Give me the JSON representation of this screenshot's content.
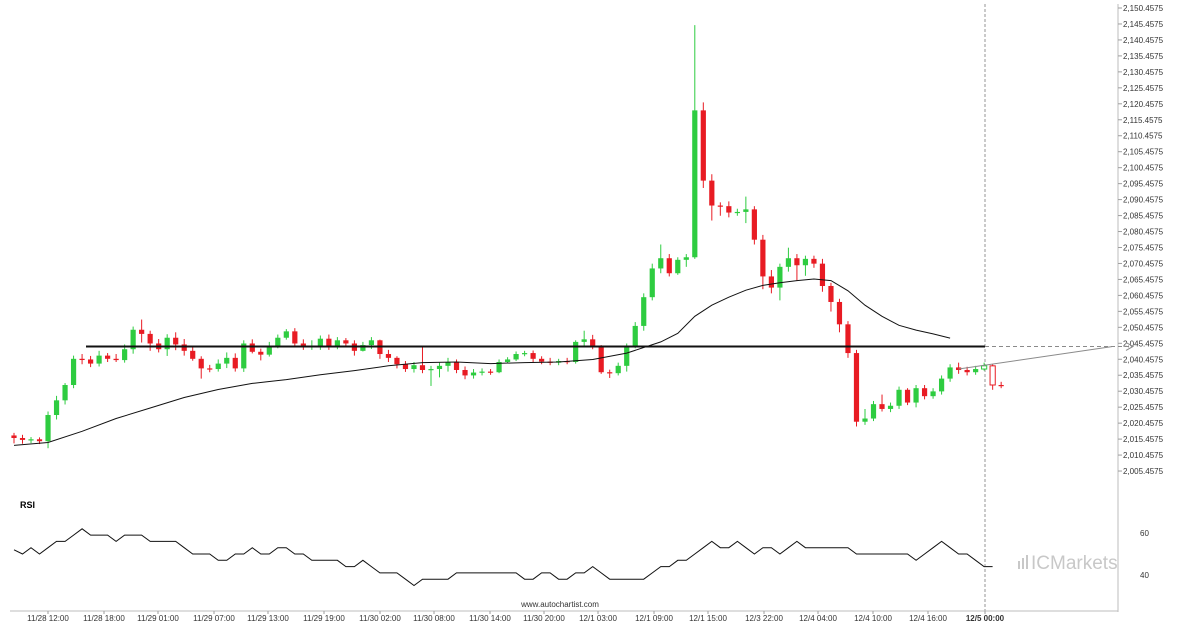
{
  "chart_data": [
    {
      "type": "candlestick",
      "instrument": "",
      "ylim": [
        2000.4575,
        2150.4575
      ],
      "y_ticks": [
        "2,005.4575",
        "2,010.4575",
        "2,015.4575",
        "2,020.4575",
        "2,025.4575",
        "2,030.4575",
        "2,035.4575",
        "2,040.4575",
        "2,045.4575",
        "2,050.4575",
        "2,055.4575",
        "2,060.4575",
        "2,065.4575",
        "2,070.4575",
        "2,075.4575",
        "2,080.4575",
        "2,085.4575",
        "2,090.4575",
        "2,095.4575",
        "2,100.4575",
        "2,105.4575",
        "2,110.4575",
        "2,115.4575",
        "2,120.4575",
        "2,125.4575",
        "2,130.4575",
        "2,135.4575",
        "2,140.4575",
        "2,145.4575",
        "2,150.4575"
      ],
      "x_labels": [
        "11/28 12:00",
        "11/28 18:00",
        "11/29 01:00",
        "11/29 07:00",
        "11/29 13:00",
        "11/29 19:00",
        "11/30 02:00",
        "11/30 08:00",
        "11/30 14:00",
        "11/30 20:00",
        "12/1 03:00",
        "12/1 09:00",
        "12/1 15:00",
        "12/3 22:00",
        "12/4 04:00",
        "12/4 10:00",
        "12/4 16:00",
        "12/5 00:00"
      ],
      "current_time_label": "12/5 00:00",
      "up_color": "#2ecc40",
      "down_color": "#e81b23",
      "candles": [
        [
          2016.6,
          2015.8,
          2017.4,
          2014.1
        ],
        [
          2015.8,
          2015.2,
          2016.8,
          2014.0
        ],
        [
          2015.2,
          2015.4,
          2016.1,
          2014.2
        ],
        [
          2015.4,
          2014.8,
          2016.0,
          2013.9
        ],
        [
          2014.8,
          2023.0,
          2024.1,
          2012.6
        ],
        [
          2023.0,
          2027.6,
          2029.0,
          2021.6
        ],
        [
          2027.6,
          2032.4,
          2033.0,
          2026.3
        ],
        [
          2032.4,
          2040.6,
          2041.6,
          2031.4
        ],
        [
          2040.6,
          2040.4,
          2042.1,
          2038.9
        ],
        [
          2040.4,
          2039.1,
          2041.5,
          2038.0
        ],
        [
          2039.1,
          2041.6,
          2043.1,
          2038.2
        ],
        [
          2041.6,
          2040.6,
          2042.4,
          2039.6
        ],
        [
          2040.6,
          2040.2,
          2042.1,
          2039.6
        ],
        [
          2040.2,
          2043.6,
          2045.1,
          2039.4
        ],
        [
          2043.6,
          2049.7,
          2050.7,
          2042.2
        ],
        [
          2049.7,
          2048.4,
          2052.9,
          2045.7
        ],
        [
          2048.4,
          2045.4,
          2049.4,
          2043.1
        ],
        [
          2045.4,
          2043.6,
          2046.8,
          2042.6
        ],
        [
          2043.6,
          2047.2,
          2048.3,
          2041.5
        ],
        [
          2047.2,
          2045.1,
          2048.9,
          2043.3
        ],
        [
          2045.1,
          2043.1,
          2046.8,
          2041.6
        ],
        [
          2043.1,
          2040.6,
          2044.2,
          2040.0
        ],
        [
          2040.6,
          2037.6,
          2041.4,
          2034.4
        ],
        [
          2037.6,
          2037.4,
          2038.7,
          2036.4
        ],
        [
          2037.4,
          2039.1,
          2040.4,
          2036.6
        ],
        [
          2039.1,
          2040.9,
          2042.6,
          2037.7
        ],
        [
          2040.9,
          2037.6,
          2042.3,
          2036.6
        ],
        [
          2037.6,
          2045.4,
          2046.4,
          2036.5
        ],
        [
          2045.4,
          2042.8,
          2046.7,
          2042.3
        ],
        [
          2042.8,
          2041.9,
          2043.8,
          2040.1
        ],
        [
          2041.9,
          2044.6,
          2045.9,
          2041.3
        ],
        [
          2044.6,
          2047.2,
          2048.2,
          2043.9
        ],
        [
          2047.2,
          2049.2,
          2049.9,
          2046.6
        ],
        [
          2049.2,
          2045.4,
          2050.2,
          2044.4
        ],
        [
          2045.4,
          2044.4,
          2046.7,
          2043.4
        ],
        [
          2044.4,
          2044.6,
          2046.4,
          2043.4
        ],
        [
          2044.6,
          2046.9,
          2047.9,
          2043.4
        ],
        [
          2046.9,
          2044.6,
          2048.2,
          2043.4
        ],
        [
          2044.6,
          2046.4,
          2047.4,
          2043.6
        ],
        [
          2046.4,
          2045.4,
          2047.1,
          2044.4
        ],
        [
          2045.4,
          2043.1,
          2046.4,
          2041.6
        ],
        [
          2043.1,
          2044.9,
          2045.9,
          2042.9
        ],
        [
          2044.9,
          2046.4,
          2047.4,
          2043.7
        ],
        [
          2046.4,
          2042.1,
          2046.6,
          2040.6
        ],
        [
          2042.1,
          2040.9,
          2043.4,
          2039.6
        ],
        [
          2040.9,
          2038.9,
          2041.4,
          2037.6
        ],
        [
          2038.9,
          2037.4,
          2039.9,
          2036.5
        ],
        [
          2037.4,
          2038.6,
          2039.6,
          2036.3
        ],
        [
          2038.6,
          2037.1,
          2044.2,
          2036.1
        ],
        [
          2037.1,
          2037.4,
          2038.4,
          2032.1
        ],
        [
          2037.4,
          2038.4,
          2039.4,
          2034.8
        ],
        [
          2038.4,
          2039.6,
          2040.9,
          2036.6
        ],
        [
          2039.6,
          2037.1,
          2040.4,
          2036.1
        ],
        [
          2037.1,
          2035.4,
          2038.2,
          2034.2
        ],
        [
          2035.4,
          2036.3,
          2037.4,
          2034.4
        ],
        [
          2036.3,
          2036.6,
          2037.6,
          2035.4
        ],
        [
          2036.6,
          2036.4,
          2037.4,
          2035.6
        ],
        [
          2036.4,
          2039.6,
          2040.4,
          2036.1
        ],
        [
          2039.6,
          2040.4,
          2041.1,
          2039.3
        ],
        [
          2040.4,
          2042.1,
          2042.9,
          2039.9
        ],
        [
          2042.1,
          2042.4,
          2043.1,
          2041.4
        ],
        [
          2042.4,
          2040.6,
          2043.2,
          2039.6
        ],
        [
          2040.6,
          2039.7,
          2041.4,
          2038.9
        ],
        [
          2039.7,
          2039.4,
          2040.9,
          2038.6
        ],
        [
          2039.4,
          2039.9,
          2040.6,
          2038.6
        ],
        [
          2039.9,
          2039.6,
          2040.9,
          2038.9
        ],
        [
          2039.6,
          2045.9,
          2046.4,
          2039.1
        ],
        [
          2045.9,
          2046.7,
          2049.4,
          2044.4
        ],
        [
          2046.7,
          2044.4,
          2048.1,
          2043.6
        ],
        [
          2044.4,
          2036.4,
          2044.9,
          2035.9
        ],
        [
          2036.4,
          2036.1,
          2037.2,
          2034.6
        ],
        [
          2036.1,
          2038.4,
          2039.4,
          2035.4
        ],
        [
          2038.4,
          2044.4,
          2045.4,
          2036.6
        ],
        [
          2044.4,
          2050.9,
          2052.1,
          2043.9
        ],
        [
          2050.9,
          2059.9,
          2061.1,
          2049.4
        ],
        [
          2059.9,
          2068.9,
          2070.4,
          2058.9
        ],
        [
          2068.9,
          2072.1,
          2076.4,
          2067.4
        ],
        [
          2072.1,
          2067.4,
          2073.4,
          2066.4
        ],
        [
          2067.4,
          2071.6,
          2072.4,
          2066.9
        ],
        [
          2071.6,
          2072.4,
          2073.4,
          2069.4
        ],
        [
          2072.4,
          2118.4,
          2145.1,
          2071.9
        ],
        [
          2118.4,
          2096.4,
          2120.9,
          2094.1
        ],
        [
          2096.4,
          2088.6,
          2098.4,
          2083.9
        ],
        [
          2088.6,
          2088.4,
          2089.6,
          2085.4
        ],
        [
          2088.4,
          2086.4,
          2089.9,
          2084.9
        ],
        [
          2086.4,
          2086.6,
          2087.6,
          2085.4
        ],
        [
          2086.6,
          2087.4,
          2091.4,
          2083.1
        ],
        [
          2087.4,
          2077.9,
          2088.4,
          2076.4
        ],
        [
          2077.9,
          2066.4,
          2079.4,
          2062.4
        ],
        [
          2066.4,
          2062.9,
          2068.4,
          2061.1
        ],
        [
          2062.9,
          2069.4,
          2070.4,
          2058.9
        ],
        [
          2069.4,
          2072.1,
          2075.4,
          2067.9
        ],
        [
          2072.1,
          2069.9,
          2073.4,
          2065.1
        ],
        [
          2069.9,
          2071.9,
          2072.9,
          2066.6
        ],
        [
          2071.9,
          2070.4,
          2072.9,
          2069.1
        ],
        [
          2070.4,
          2063.4,
          2071.9,
          2061.6
        ],
        [
          2063.4,
          2058.4,
          2064.4,
          2055.4
        ],
        [
          2058.4,
          2051.4,
          2059.4,
          2048.9
        ],
        [
          2051.4,
          2042.4,
          2052.4,
          2040.9
        ],
        [
          2042.4,
          2020.9,
          2043.4,
          2019.4
        ],
        [
          2020.9,
          2021.9,
          2024.9,
          2019.9
        ],
        [
          2021.9,
          2026.4,
          2027.4,
          2021.1
        ],
        [
          2026.4,
          2024.9,
          2029.4,
          2024.1
        ],
        [
          2024.9,
          2025.9,
          2026.9,
          2023.9
        ],
        [
          2025.9,
          2030.9,
          2031.9,
          2024.9
        ],
        [
          2030.9,
          2026.9,
          2031.4,
          2026.1
        ],
        [
          2026.9,
          2031.4,
          2032.4,
          2025.4
        ],
        [
          2031.4,
          2028.9,
          2032.4,
          2027.9
        ],
        [
          2028.9,
          2030.4,
          2031.4,
          2028.1
        ],
        [
          2030.4,
          2034.4,
          2035.4,
          2029.4
        ],
        [
          2034.4,
          2037.9,
          2038.9,
          2033.4
        ],
        [
          2037.9,
          2037.1,
          2039.4,
          2035.9
        ],
        [
          2037.1,
          2036.4,
          2038.1,
          2035.4
        ],
        [
          2036.4,
          2037.4,
          2038.4,
          2035.6
        ],
        [
          2037.4,
          2038.4,
          2039.4,
          2036.9
        ],
        [
          2038.4,
          2032.4,
          2038.9,
          2030.9
        ],
        [
          2032.4,
          2032.1,
          2033.4,
          2031.4
        ]
      ],
      "moving_average": [
        [
          0,
          2013.5
        ],
        [
          4,
          2014.4
        ],
        [
          8,
          2017.9
        ],
        [
          12,
          2021.9
        ],
        [
          16,
          2025.2
        ],
        [
          20,
          2028.5
        ],
        [
          24,
          2031.0
        ],
        [
          28,
          2032.9
        ],
        [
          32,
          2034.1
        ],
        [
          36,
          2035.6
        ],
        [
          40,
          2036.9
        ],
        [
          44,
          2038.4
        ],
        [
          48,
          2039.4
        ],
        [
          52,
          2039.6
        ],
        [
          56,
          2039.1
        ],
        [
          60,
          2039.4
        ],
        [
          64,
          2039.6
        ],
        [
          68,
          2040.4
        ],
        [
          72,
          2042.4
        ],
        [
          76,
          2045.9
        ],
        [
          78,
          2048.6
        ],
        [
          80,
          2053.9
        ],
        [
          82,
          2057.4
        ],
        [
          84,
          2059.9
        ],
        [
          86,
          2062.1
        ],
        [
          88,
          2063.6
        ],
        [
          90,
          2064.4
        ],
        [
          92,
          2065.1
        ],
        [
          94,
          2065.6
        ],
        [
          96,
          2065.1
        ],
        [
          98,
          2061.9
        ],
        [
          100,
          2057.4
        ],
        [
          102,
          2053.9
        ],
        [
          104,
          2051.1
        ],
        [
          106,
          2049.6
        ],
        [
          108,
          2048.4
        ],
        [
          110,
          2047.1
        ]
      ],
      "support_level": 2044.4575,
      "trend_line": {
        "from": [
          111,
          2037.4
        ],
        "to": [
          129,
          2044.4
        ]
      },
      "rsi": {
        "title": "RSI",
        "ylim": [
          30,
          70
        ],
        "ticks": [
          40,
          60
        ],
        "values": [
          52,
          50,
          53,
          50,
          53,
          56,
          56,
          59,
          62,
          59,
          59,
          59,
          56,
          59,
          59,
          59,
          56,
          56,
          56,
          56,
          53,
          50,
          50,
          50,
          47,
          47,
          50,
          50,
          53,
          50,
          50,
          53,
          53,
          50,
          50,
          47,
          47,
          47,
          47,
          44,
          44,
          47,
          44,
          41,
          41,
          41,
          38,
          35,
          38,
          38,
          38,
          38,
          41,
          41,
          41,
          41,
          41,
          41,
          41,
          41,
          38,
          38,
          41,
          41,
          38,
          38,
          41,
          41,
          44,
          41,
          38,
          38,
          38,
          38,
          38,
          41,
          44,
          44,
          47,
          47,
          50,
          53,
          56,
          53,
          53,
          56,
          53,
          50,
          53,
          53,
          50,
          53,
          56,
          53,
          53,
          53,
          53,
          53,
          53,
          50,
          50,
          50,
          50,
          50,
          50,
          50,
          47,
          50,
          53,
          56,
          53,
          50,
          50,
          47,
          44,
          44
        ]
      }
    }
  ],
  "watermark": "www.autochartist.com",
  "brand": {
    "ic": "IC",
    "name": "Markets"
  }
}
